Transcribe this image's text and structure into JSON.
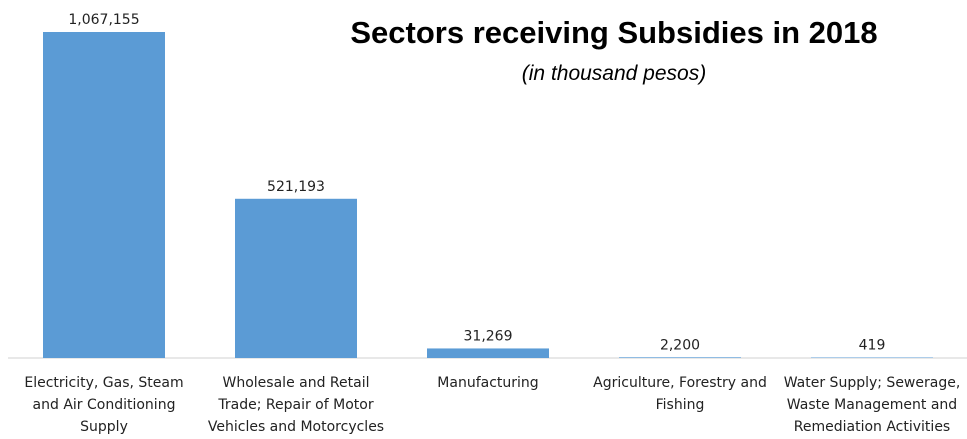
{
  "chart_data": {
    "type": "bar",
    "title": "Sectors receiving Subsidies in 2018",
    "subtitle": "(in thousand pesos)",
    "xlabel": "",
    "ylabel": "",
    "ylim": [
      0,
      1067155
    ],
    "grid": false,
    "legend": "none",
    "bar_color": "#5b9bd5",
    "categories": [
      [
        "Electricity, Gas, Steam",
        "and Air Conditioning",
        "Supply"
      ],
      [
        "Wholesale and Retail",
        "Trade; Repair of Motor",
        "Vehicles and Motorcycles"
      ],
      [
        "Manufacturing"
      ],
      [
        "Agriculture, Forestry and",
        "Fishing"
      ],
      [
        "Water Supply; Sewerage,",
        "Waste Management and",
        "Remediation Activities"
      ]
    ],
    "values": [
      1067155,
      521193,
      31269,
      2200,
      419
    ],
    "data_labels": [
      "1,067,155",
      "521,193",
      "31,269",
      "2,200",
      "419"
    ]
  }
}
